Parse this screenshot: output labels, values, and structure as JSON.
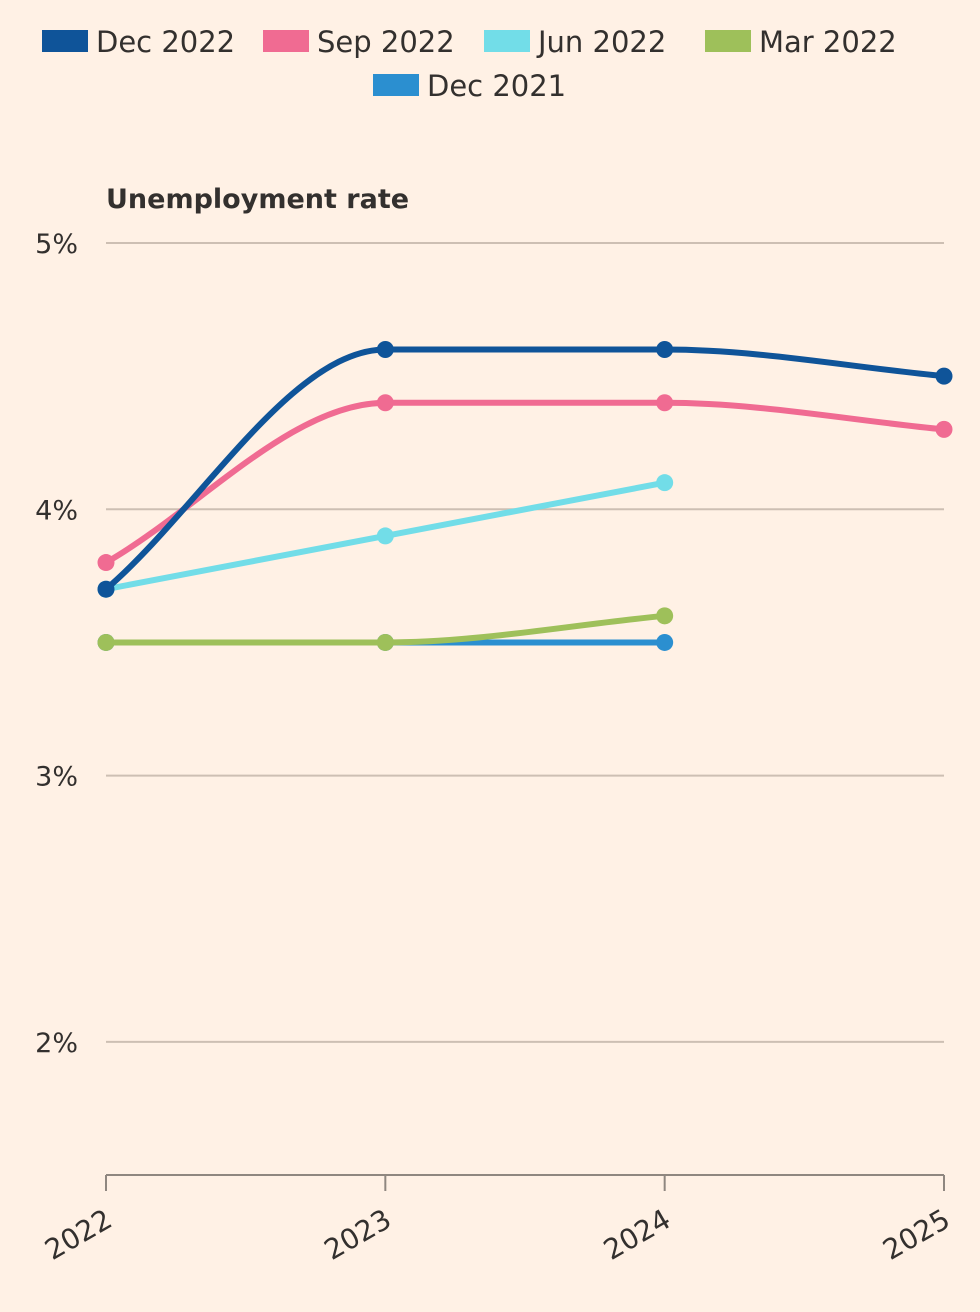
{
  "chart_data": {
    "type": "line",
    "title": "",
    "ylabel": "Unemployment rate",
    "xlabel": "",
    "categories": [
      "2022",
      "2023",
      "2024",
      "2025"
    ],
    "y_ticks": [
      2,
      3,
      4,
      5
    ],
    "y_tick_labels": [
      "2%",
      "3%",
      "4%",
      "5%"
    ],
    "ylim": [
      1.5,
      5.0
    ],
    "grid": true,
    "legend_position": "top",
    "series": [
      {
        "name": "Dec 2022",
        "color": "#0f5499",
        "values": [
          3.7,
          4.6,
          4.6,
          4.5
        ]
      },
      {
        "name": "Sep 2022",
        "color": "#f06b92",
        "values": [
          3.8,
          4.4,
          4.4,
          4.3
        ]
      },
      {
        "name": "Jun 2022",
        "color": "#72dde8",
        "values": [
          3.7,
          3.9,
          4.1,
          null
        ]
      },
      {
        "name": "Mar 2022",
        "color": "#9ec05a",
        "values": [
          3.5,
          3.5,
          3.6,
          null
        ]
      },
      {
        "name": "Dec 2021",
        "color": "#2b8fd0",
        "values": [
          3.5,
          3.5,
          3.5,
          null
        ]
      }
    ]
  }
}
